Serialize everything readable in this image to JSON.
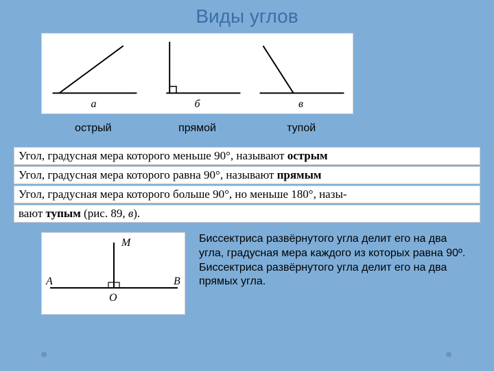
{
  "background_color": "#7eaed8",
  "title": {
    "text": "Виды углов",
    "color": "#3a6fa8",
    "fontsize": 28
  },
  "angles": {
    "stroke_color": "#000000",
    "stroke_width": 2,
    "items": [
      {
        "letter": "а",
        "caption": "острый",
        "lines": [
          [
            15,
            88,
            140,
            88
          ],
          [
            25,
            88,
            120,
            18
          ]
        ]
      },
      {
        "letter": "б",
        "caption": "прямой",
        "lines": [
          [
            30,
            88,
            140,
            88
          ],
          [
            35,
            88,
            35,
            12
          ]
        ],
        "square": [
          35,
          78,
          45,
          88
        ]
      },
      {
        "letter": "в",
        "caption": "тупой",
        "lines": [
          [
            15,
            88,
            140,
            88
          ],
          [
            65,
            88,
            20,
            18
          ]
        ]
      }
    ],
    "letter_fontsize": 16,
    "caption_fontsize": 16,
    "caption_color": "#000000"
  },
  "definitions": {
    "strip_bg": "#ffffff",
    "strip_border": "#d0d0d0",
    "font_family": "Times New Roman, serif",
    "fontsize": 17,
    "lines": [
      [
        {
          "t": "Угол, градусная мера которого меньше 90°, называют ",
          "b": false
        },
        {
          "t": "острым",
          "b": true
        }
      ],
      [
        {
          "t": "Угол, градусная мера которого равна 90°, называют ",
          "b": false
        },
        {
          "t": "прямым",
          "b": true
        }
      ],
      [
        {
          "t": "Угол, градусная мера которого больше 90°, но меньше 180°, назы-",
          "b": false
        }
      ],
      [
        {
          "t": "вают ",
          "b": false
        },
        {
          "t": "тупым ",
          "b": true
        },
        {
          "t": "(рис. 89, ",
          "b": false
        },
        {
          "t": "в",
          "b": false,
          "i": true
        },
        {
          "t": ").",
          "b": false
        }
      ]
    ]
  },
  "bisector": {
    "figure": {
      "A": "A",
      "B": "B",
      "O": "O",
      "M": "M",
      "stroke_color": "#000000",
      "stroke_width": 2,
      "hline": [
        12,
        80,
        198,
        80
      ],
      "vline": [
        105,
        80,
        105,
        14
      ],
      "square": [
        97,
        72,
        113,
        80
      ]
    },
    "text": "Биссектриса развёрнутого угла делит его на два угла, градусная мера каждого из которых равна 90º.\nБиссектриса развёрнутого угла делит его на два прямых угла.",
    "text_fontsize": 16,
    "text_color": "#000000"
  },
  "corner_dots": {
    "color": "#6a94bd",
    "positions": [
      [
        60,
        512
      ],
      [
        650,
        512
      ]
    ]
  }
}
